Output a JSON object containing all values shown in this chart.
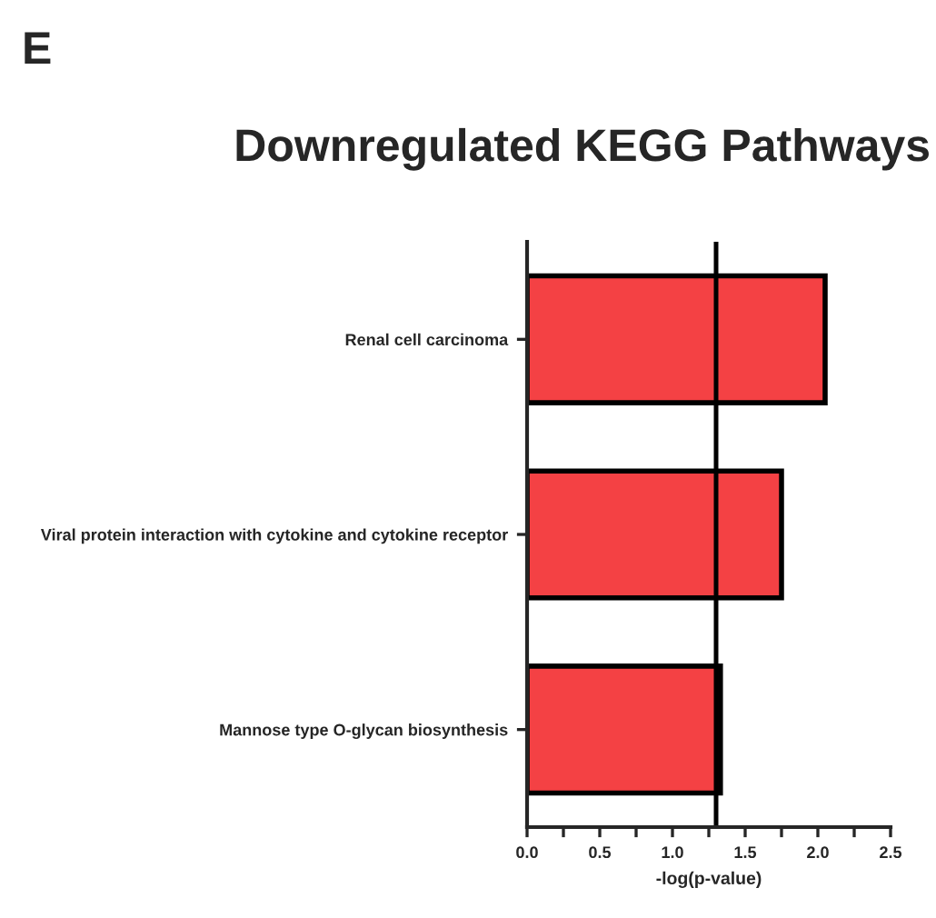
{
  "chart_data": {
    "type": "bar",
    "orientation": "horizontal",
    "title": "Downregulated KEGG Pathways",
    "xlabel": "-log(p-value)",
    "categories": [
      "Renal cell carcinoma",
      "Viral protein interaction with cytokine and cytokine receptor",
      "Mannose type O-glycan biosynthesis"
    ],
    "values": [
      2.05,
      1.75,
      1.33
    ],
    "color": "#f44144",
    "xlim": [
      0,
      2.5
    ],
    "xticks": [
      {
        "value": 0,
        "label": "0.0"
      },
      {
        "value": 0.25,
        "label": null
      },
      {
        "value": 0.5,
        "label": "0.5"
      },
      {
        "value": 0.75,
        "label": null
      },
      {
        "value": 1.0,
        "label": "1.0"
      },
      {
        "value": 1.25,
        "label": null
      },
      {
        "value": 1.5,
        "label": "1.5"
      },
      {
        "value": 1.75,
        "label": null
      },
      {
        "value": 2.0,
        "label": "2.0"
      },
      {
        "value": 2.25,
        "label": null
      },
      {
        "value": 2.5,
        "label": "2.5"
      }
    ],
    "ref_lines": [
      {
        "axis": "x",
        "value": 1.3,
        "color": "#000000"
      }
    ],
    "annotations": [
      "E"
    ],
    "grid": false,
    "legend": false
  }
}
